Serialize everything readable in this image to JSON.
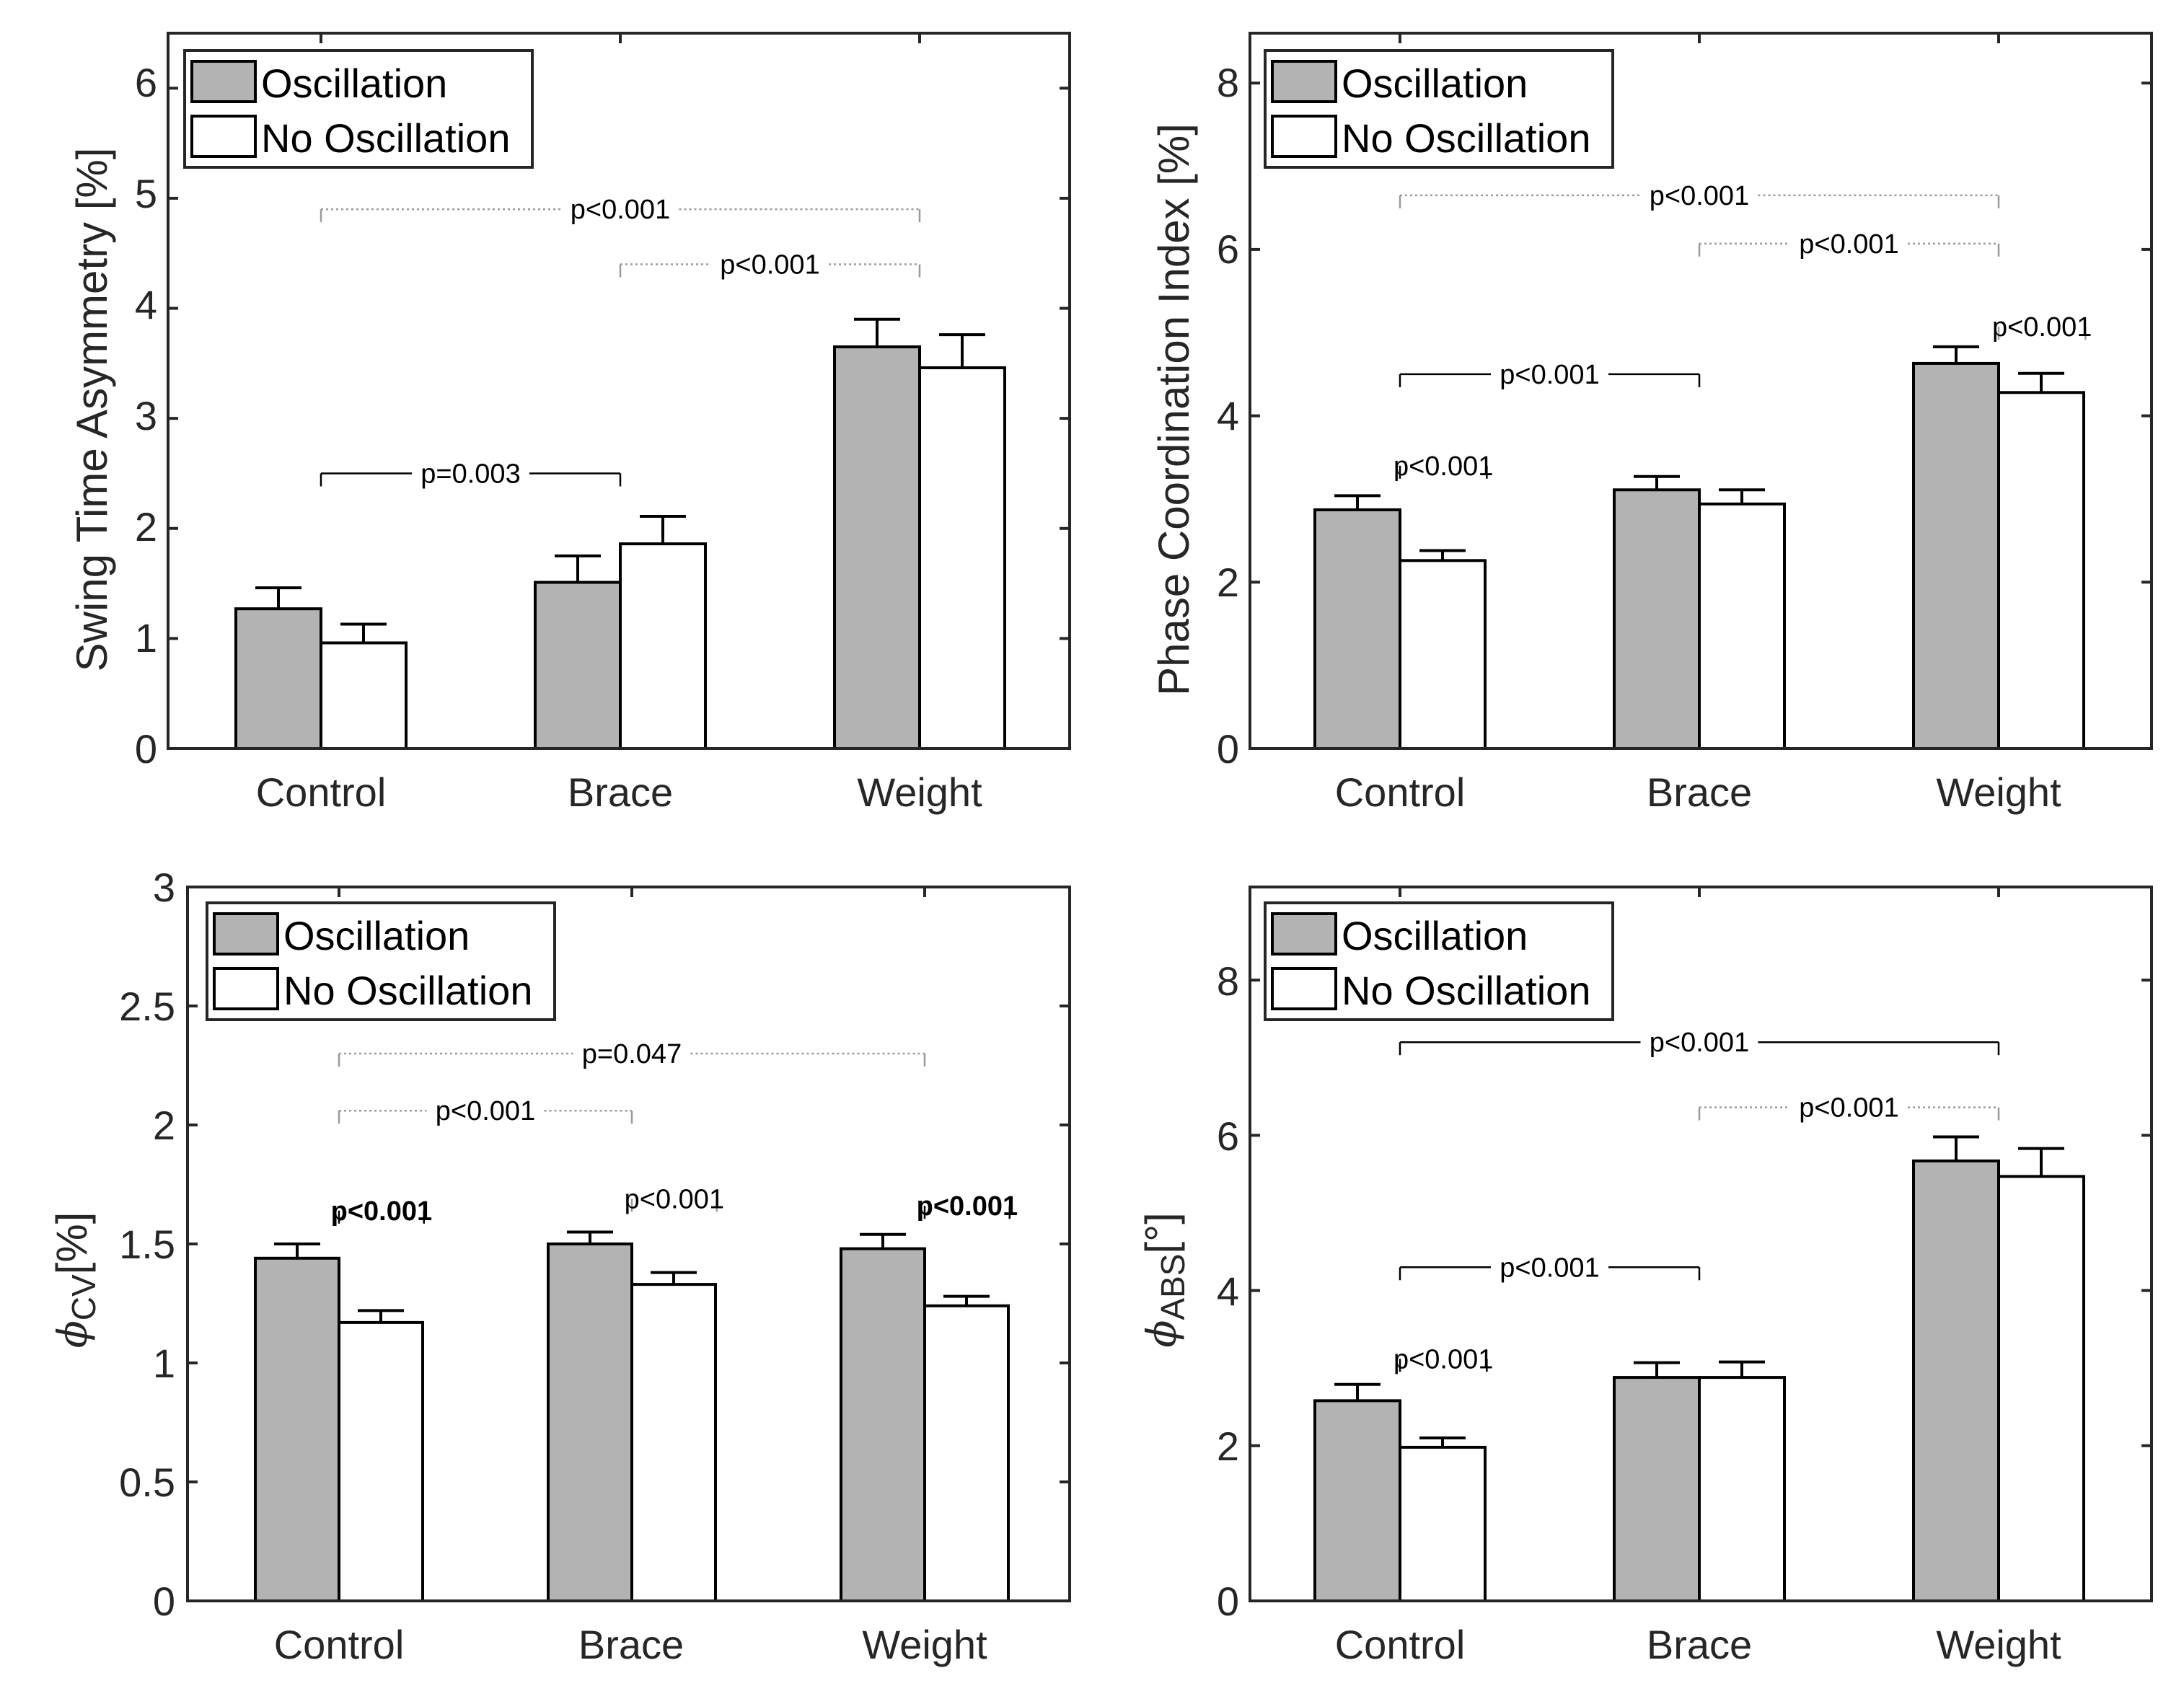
{
  "colors": {
    "oscillation": "#b3b3b3",
    "no_oscillation": "#ffffff",
    "axis": "#262626",
    "edge": "#000000"
  },
  "chart_data": [
    {
      "type": "bar",
      "ylabel": "Swing Time Asymmetry [%]",
      "ylim": [
        0,
        6.5
      ],
      "yticks": [
        "0",
        "1",
        "2",
        "3",
        "4",
        "5",
        "6"
      ],
      "categories": [
        "Control",
        "Brace",
        "Weight"
      ],
      "legend": {
        "placement": "top-left",
        "entries": [
          "Oscillation",
          "No Oscillation"
        ]
      },
      "series": [
        {
          "name": "Oscillation",
          "values": [
            1.27,
            1.51,
            3.65
          ],
          "errors": [
            0.19,
            0.24,
            0.25
          ]
        },
        {
          "name": "No Oscillation",
          "values": [
            0.96,
            1.86,
            3.46
          ],
          "errors": [
            0.17,
            0.25,
            0.3
          ]
        }
      ],
      "annotations": [
        {
          "text": "p<0.001",
          "x1": 0,
          "x2": 2,
          "y": 4.9,
          "style": "dotted"
        },
        {
          "text": "p<0.001",
          "x1": 1,
          "x2": 2,
          "y": 4.4,
          "style": "dotted"
        },
        {
          "text": "p=0.003",
          "x1": 0,
          "x2": 1,
          "y": 2.5,
          "style": "solid"
        }
      ]
    },
    {
      "type": "bar",
      "ylabel": "Phase Coordination Index [%]",
      "ylim": [
        0,
        8.6
      ],
      "yticks": [
        "0",
        "2",
        "4",
        "6",
        "8"
      ],
      "categories": [
        "Control",
        "Brace",
        "Weight"
      ],
      "legend": {
        "placement": "top-left",
        "entries": [
          "Oscillation",
          "No Oscillation"
        ]
      },
      "series": [
        {
          "name": "Oscillation",
          "values": [
            2.87,
            3.11,
            4.63
          ],
          "errors": [
            0.17,
            0.16,
            0.2
          ]
        },
        {
          "name": "No Oscillation",
          "values": [
            2.26,
            2.94,
            4.28
          ],
          "errors": [
            0.12,
            0.17,
            0.23
          ]
        }
      ],
      "annotations": [
        {
          "text": "p<0.001",
          "x1": 0,
          "x2": 2,
          "y": 6.65,
          "style": "dotted"
        },
        {
          "text": "p<0.001",
          "x1": 1,
          "x2": 2,
          "y": 6.07,
          "style": "dotted"
        },
        {
          "text": "p<0.001",
          "x1": 2,
          "x2": 2.29,
          "y": 5.07,
          "style": "dotted"
        },
        {
          "text": "p<0.001",
          "x1": 0,
          "x2": 1,
          "y": 4.5,
          "style": "solid"
        },
        {
          "text": "p<0.001",
          "x1": 0,
          "x2": 0.29,
          "y": 3.4,
          "style": "solid"
        }
      ]
    },
    {
      "type": "bar",
      "ylabel": "CV",
      "ylim": [
        0,
        3
      ],
      "yticks": [
        "0",
        "0.5",
        "1",
        "1.5",
        "2",
        "2.5",
        "3"
      ],
      "categories": [
        "Control",
        "Brace",
        "Weight"
      ],
      "legend": {
        "placement": "top-left",
        "entries": [
          "Oscillation",
          "No Oscillation"
        ]
      },
      "series": [
        {
          "name": "Oscillation",
          "values": [
            1.44,
            1.5,
            1.48
          ],
          "errors": [
            0.06,
            0.05,
            0.06
          ]
        },
        {
          "name": "No Oscillation",
          "values": [
            1.17,
            1.33,
            1.24
          ],
          "errors": [
            0.05,
            0.05,
            0.04
          ]
        }
      ],
      "annotations": [
        {
          "text": "p=0.047",
          "x1": 0,
          "x2": 2,
          "y": 2.3,
          "style": "dotted"
        },
        {
          "text": "p<0.001",
          "x1": 0,
          "x2": 1,
          "y": 2.06,
          "style": "dotted"
        },
        {
          "text": "p<0.001",
          "x1": 0,
          "x2": 0.29,
          "y": 1.64,
          "style": "solid",
          "bold": true
        },
        {
          "text": "p<0.001",
          "x1": 1,
          "x2": 1.29,
          "y": 1.69,
          "style": "dotted"
        },
        {
          "text": "p<0.001",
          "x1": 2,
          "x2": 2.29,
          "y": 1.66,
          "style": "solid",
          "bold": true
        }
      ]
    },
    {
      "type": "bar",
      "ylabel": "ABS",
      "ylim": [
        0,
        9.2
      ],
      "yticks": [
        "0",
        "2",
        "4",
        "6",
        "8"
      ],
      "categories": [
        "Control",
        "Brace",
        "Weight"
      ],
      "legend": {
        "placement": "top-left",
        "entries": [
          "Oscillation",
          "No Oscillation"
        ]
      },
      "series": [
        {
          "name": "Oscillation",
          "values": [
            2.58,
            2.88,
            5.67
          ],
          "errors": [
            0.21,
            0.19,
            0.31
          ]
        },
        {
          "name": "No Oscillation",
          "values": [
            1.98,
            2.88,
            5.47
          ],
          "errors": [
            0.12,
            0.2,
            0.36
          ]
        }
      ],
      "annotations": [
        {
          "text": "p<0.001",
          "x1": 0,
          "x2": 2,
          "y": 7.2,
          "style": "solid"
        },
        {
          "text": "p<0.001",
          "x1": 1,
          "x2": 2,
          "y": 6.36,
          "style": "dotted"
        },
        {
          "text": "p<0.001",
          "x1": 0,
          "x2": 1,
          "y": 4.3,
          "style": "solid"
        },
        {
          "text": "p<0.001",
          "x1": 0,
          "x2": 0.29,
          "y": 3.12,
          "style": "solid"
        }
      ]
    }
  ]
}
